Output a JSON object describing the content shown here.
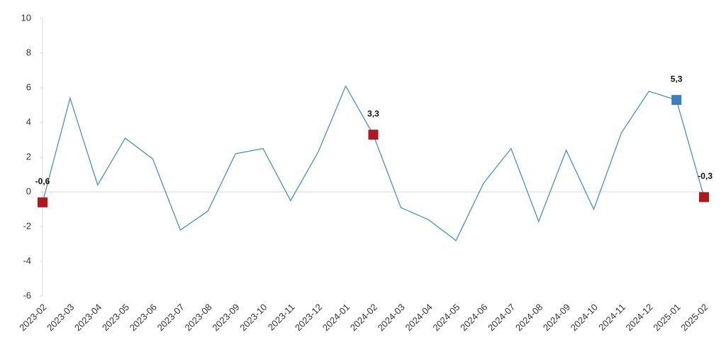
{
  "chart_data": {
    "type": "line",
    "categories": [
      "2023-02",
      "2023-03",
      "2023-04",
      "2023-05",
      "2023-06",
      "2023-07",
      "2023-08",
      "2023-09",
      "2023-10",
      "2023-11",
      "2023-12",
      "2024-01",
      "2024-02",
      "2024-03",
      "2024-04",
      "2024-05",
      "2024-06",
      "2024-07",
      "2024-08",
      "2024-09",
      "2024-10",
      "2024-11",
      "2024-12",
      "2025-01",
      "2025-02"
    ],
    "values": [
      -0.6,
      5.4,
      0.4,
      3.1,
      1.9,
      -2.2,
      -1.1,
      2.2,
      2.5,
      -0.5,
      2.3,
      6.1,
      3.3,
      -0.9,
      -1.6,
      -2.8,
      0.5,
      2.5,
      -1.7,
      2.4,
      -1.0,
      3.4,
      5.8,
      5.3,
      -0.3
    ],
    "value_labels": [
      "-0,6",
      null,
      null,
      null,
      null,
      null,
      null,
      null,
      null,
      null,
      null,
      null,
      "3,3",
      null,
      null,
      null,
      null,
      null,
      null,
      null,
      null,
      null,
      null,
      "5,3",
      "-0,3"
    ],
    "marker_colors": [
      "#b0171f",
      null,
      null,
      null,
      null,
      null,
      null,
      null,
      null,
      null,
      null,
      null,
      "#b0171f",
      null,
      null,
      null,
      null,
      null,
      null,
      null,
      null,
      null,
      null,
      "#3a80c0",
      "#b0171f"
    ],
    "color": "#4a90c6",
    "ylim": [
      -6,
      10
    ],
    "yticks": [
      -6,
      -4,
      -2,
      0,
      2,
      4,
      6,
      8,
      10
    ]
  }
}
